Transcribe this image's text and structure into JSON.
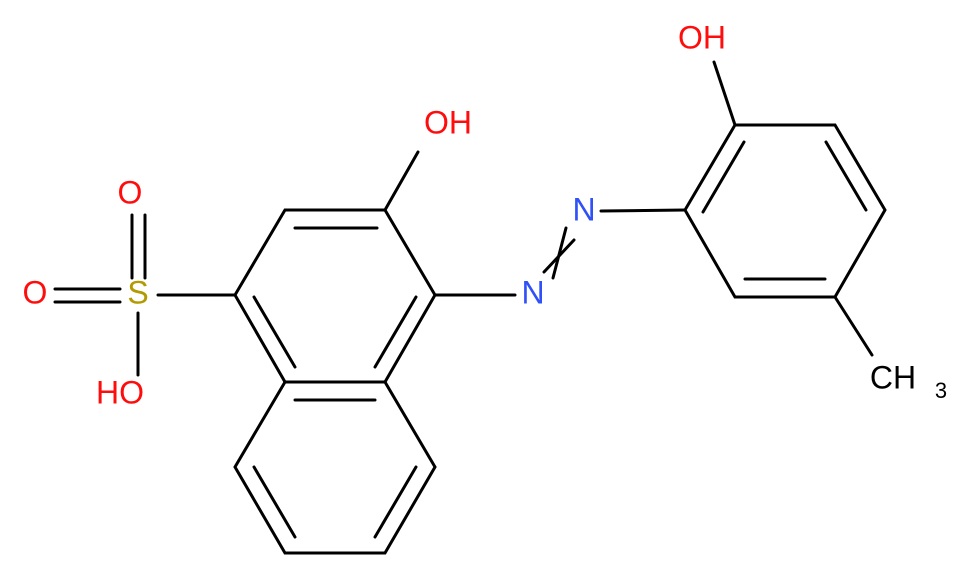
{
  "molecule": {
    "atoms": [
      {
        "label": "OH"
      },
      {
        "label": "OH"
      },
      {
        "label": "N"
      },
      {
        "label": "N"
      },
      {
        "label": "O"
      },
      {
        "label": "O"
      },
      {
        "label": "S"
      },
      {
        "label": "HO"
      },
      {
        "label": "CH",
        "subscript": "3"
      }
    ]
  }
}
